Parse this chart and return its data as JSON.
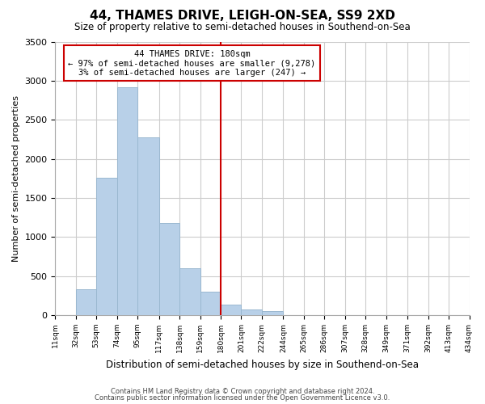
{
  "title": "44, THAMES DRIVE, LEIGH-ON-SEA, SS9 2XD",
  "subtitle": "Size of property relative to semi-detached houses in Southend-on-Sea",
  "xlabel": "Distribution of semi-detached houses by size in Southend-on-Sea",
  "ylabel": "Number of semi-detached properties",
  "footnote1": "Contains HM Land Registry data © Crown copyright and database right 2024.",
  "footnote2": "Contains public sector information licensed under the Open Government Licence v3.0.",
  "bar_left_edges": [
    11,
    32,
    53,
    74,
    95,
    117,
    138,
    159,
    180,
    201,
    222,
    244,
    265,
    286,
    307,
    328,
    349,
    371,
    392,
    413
  ],
  "bar_heights": [
    0,
    330,
    1760,
    2920,
    2280,
    1175,
    600,
    300,
    135,
    75,
    55,
    0,
    0,
    0,
    0,
    0,
    0,
    0,
    0,
    0
  ],
  "tick_labels": [
    "11sqm",
    "32sqm",
    "53sqm",
    "74sqm",
    "95sqm",
    "117sqm",
    "138sqm",
    "159sqm",
    "180sqm",
    "201sqm",
    "222sqm",
    "244sqm",
    "265sqm",
    "286sqm",
    "307sqm",
    "328sqm",
    "349sqm",
    "371sqm",
    "392sqm",
    "413sqm",
    "434sqm"
  ],
  "bar_color": "#b8d0e8",
  "bar_edge_color": "#9ab8d0",
  "property_line_x": 180,
  "annotation_title": "44 THAMES DRIVE: 180sqm",
  "annotation_line1": "← 97% of semi-detached houses are smaller (9,278)",
  "annotation_line2": "3% of semi-detached houses are larger (247) →",
  "annotation_box_color": "#cc0000",
  "ylim": [
    0,
    3500
  ],
  "background_color": "#ffffff",
  "grid_color": "#cccccc"
}
